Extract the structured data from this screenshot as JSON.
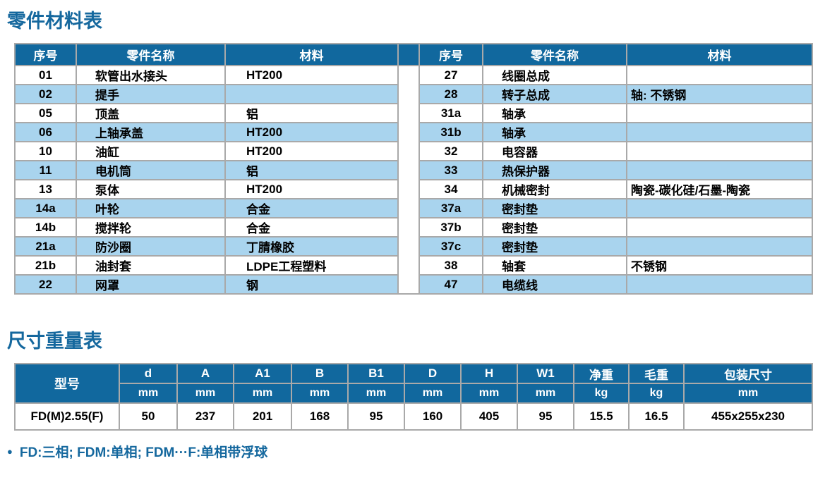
{
  "page": {
    "parts_table_title": "零件材料表",
    "dimensions_table_title": "尺寸重量表",
    "bullet": "●",
    "footnote": "FD:三相; FDM:单相; FDM···F:单相带浮球"
  },
  "colors": {
    "header_bg": "#11689e",
    "row_alt_bg": "#a9d4ee",
    "row_bg": "#ffffff",
    "title_color": "#15689e",
    "border_color": "#a9a9a9",
    "header_text": "#ffffff",
    "body_text": "#000000"
  },
  "parts_table": {
    "headers": [
      "序号",
      "零件名称",
      "材料"
    ],
    "left_rows": [
      {
        "no": "01",
        "name": "软管出水接头",
        "material": "HT200"
      },
      {
        "no": "02",
        "name": "提手",
        "material": ""
      },
      {
        "no": "05",
        "name": "顶盖",
        "material": "铝"
      },
      {
        "no": "06",
        "name": "上轴承盖",
        "material": "HT200"
      },
      {
        "no": "10",
        "name": "油缸",
        "material": "HT200"
      },
      {
        "no": "11",
        "name": "电机筒",
        "material": "铝"
      },
      {
        "no": "13",
        "name": "泵体",
        "material": "HT200"
      },
      {
        "no": "14a",
        "name": "叶轮",
        "material": "合金"
      },
      {
        "no": "14b",
        "name": "搅拌轮",
        "material": "合金"
      },
      {
        "no": "21a",
        "name": "防沙圈",
        "material": "丁腈橡胶"
      },
      {
        "no": "21b",
        "name": "油封套",
        "material": "LDPE工程塑料"
      },
      {
        "no": "22",
        "name": "网罩",
        "material": "钢"
      }
    ],
    "right_rows": [
      {
        "no": "27",
        "name": "线圈总成",
        "material": ""
      },
      {
        "no": "28",
        "name": "转子总成",
        "material": "轴: 不锈钢"
      },
      {
        "no": "31a",
        "name": "轴承",
        "material": ""
      },
      {
        "no": "31b",
        "name": "轴承",
        "material": ""
      },
      {
        "no": "32",
        "name": "电容器",
        "material": ""
      },
      {
        "no": "33",
        "name": "热保护器",
        "material": ""
      },
      {
        "no": "34",
        "name": "机械密封",
        "material": "陶瓷-碳化硅/石墨-陶瓷"
      },
      {
        "no": "37a",
        "name": "密封垫",
        "material": ""
      },
      {
        "no": "37b",
        "name": "密封垫",
        "material": ""
      },
      {
        "no": "37c",
        "name": "密封垫",
        "material": ""
      },
      {
        "no": "38",
        "name": "轴套",
        "material": "不锈钢"
      },
      {
        "no": "47",
        "name": "电缆线",
        "material": ""
      }
    ]
  },
  "dimensions_table": {
    "model_header": "型号",
    "columns": [
      {
        "label": "d",
        "unit": "mm"
      },
      {
        "label": "A",
        "unit": "mm"
      },
      {
        "label": "A1",
        "unit": "mm"
      },
      {
        "label": "B",
        "unit": "mm"
      },
      {
        "label": "B1",
        "unit": "mm"
      },
      {
        "label": "D",
        "unit": "mm"
      },
      {
        "label": "H",
        "unit": "mm"
      },
      {
        "label": "W1",
        "unit": "mm"
      },
      {
        "label": "净重",
        "unit": "kg"
      },
      {
        "label": "毛重",
        "unit": "kg"
      },
      {
        "label": "包装尺寸",
        "unit": "mm"
      }
    ],
    "rows": [
      {
        "model": "FD(M)2.55(F)",
        "values": [
          "50",
          "237",
          "201",
          "168",
          "95",
          "160",
          "405",
          "95",
          "15.5",
          "16.5",
          "455x255x230"
        ]
      }
    ]
  }
}
